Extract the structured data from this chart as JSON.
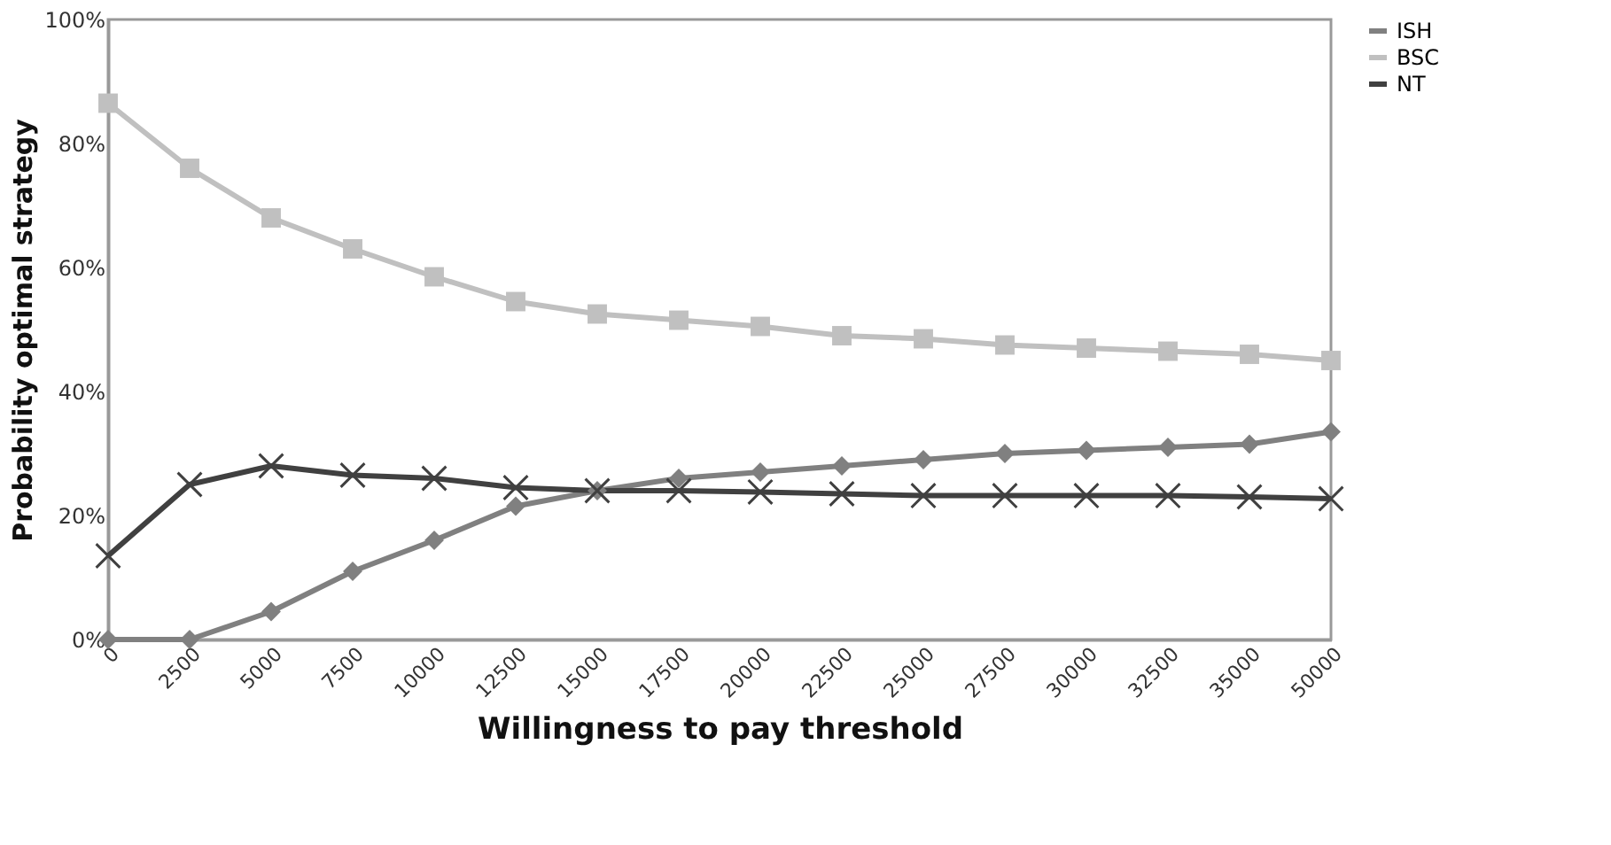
{
  "chart_data": {
    "type": "line",
    "xlabel": "Willingness to pay threshold",
    "ylabel": "Probability optimal strategy",
    "categories": [
      "0",
      "2500",
      "5000",
      "7500",
      "10000",
      "12500",
      "15000",
      "17500",
      "20000",
      "22500",
      "25000",
      "27500",
      "30000",
      "32500",
      "35000",
      "50000"
    ],
    "series": [
      {
        "name": "ISH",
        "color": "#808080",
        "marker": "diamond",
        "values": [
          0,
          0,
          4.5,
          11,
          16,
          21.5,
          24,
          26,
          27,
          28,
          29,
          30,
          30.5,
          31,
          31.5,
          33.5
        ]
      },
      {
        "name": "BSC",
        "color": "#c0c0c0",
        "marker": "square",
        "values": [
          86.5,
          76,
          68,
          63,
          58.5,
          54.5,
          52.5,
          51.5,
          50.5,
          49,
          48.5,
          47.5,
          47,
          46.5,
          46,
          45
        ]
      },
      {
        "name": "NT",
        "color": "#404040",
        "marker": "cross",
        "values": [
          13.5,
          25,
          28,
          26.5,
          26,
          24.5,
          24,
          24,
          23.8,
          23.5,
          23.2,
          23.2,
          23.2,
          23.2,
          23,
          22.7
        ]
      }
    ],
    "ylim": [
      0,
      100
    ],
    "yticks": [
      {
        "value": 0,
        "label": "0%"
      },
      {
        "value": 20,
        "label": "20%"
      },
      {
        "value": 40,
        "label": "40%"
      },
      {
        "value": 60,
        "label": "60%"
      },
      {
        "value": 80,
        "label": "80%"
      },
      {
        "value": 100,
        "label": "100%"
      }
    ],
    "grid": false,
    "legend": "right",
    "line_style": "solid"
  }
}
